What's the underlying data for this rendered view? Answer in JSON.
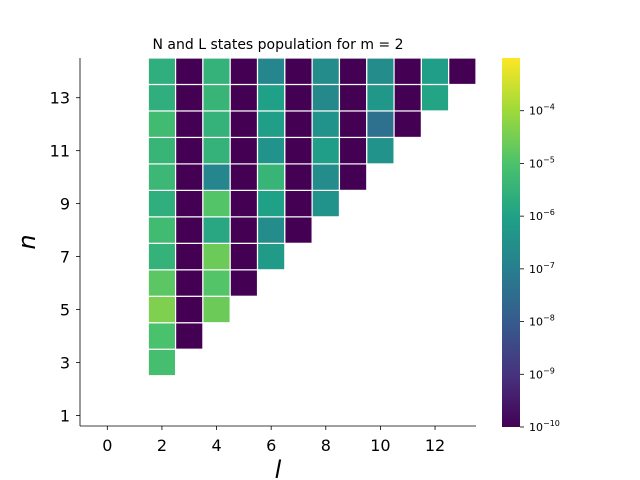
{
  "chart_data": {
    "type": "heatmap",
    "title": "N and L states population for m = 2",
    "xlabel": "l",
    "ylabel": "n",
    "x_ticks": [
      0,
      2,
      4,
      6,
      8,
      10,
      12
    ],
    "y_ticks": [
      1,
      3,
      5,
      7,
      9,
      11,
      13
    ],
    "xlim": [
      -1,
      13.5
    ],
    "ylim": [
      0.6,
      14.5
    ],
    "colorbar": {
      "scale": "log",
      "range": [
        1e-10,
        0.001
      ],
      "colormap": "viridis",
      "tick_values": [
        -10,
        -9,
        -8,
        -7,
        -6,
        -5,
        -4
      ],
      "tick_labels": [
        "10^-10",
        "10^-9",
        "10^-8",
        "10^-7",
        "10^-6",
        "10^-5",
        "10^-4"
      ]
    },
    "cells": [
      {
        "n": 3,
        "values": [
          -5.1
        ]
      },
      {
        "n": 4,
        "values": [
          -5.0,
          -10
        ]
      },
      {
        "n": 5,
        "values": [
          -4.4,
          -10,
          -4.6
        ]
      },
      {
        "n": 6,
        "values": [
          -4.8,
          -10,
          -4.9,
          -10
        ]
      },
      {
        "n": 7,
        "values": [
          -5.5,
          -10,
          -4.6,
          -10,
          -6.2
        ]
      },
      {
        "n": 8,
        "values": [
          -5.2,
          -10,
          -5.8,
          -10,
          -6.6,
          -10
        ]
      },
      {
        "n": 9,
        "values": [
          -5.6,
          -10,
          -4.9,
          -10,
          -6.0,
          -10,
          -6.4
        ]
      },
      {
        "n": 10,
        "values": [
          -5.3,
          -10,
          -6.8,
          -10,
          -5.4,
          -10,
          -6.6,
          -10
        ]
      },
      {
        "n": 11,
        "values": [
          -5.4,
          -10,
          -5.5,
          -10,
          -6.4,
          -10,
          -6.1,
          -10,
          -6.4
        ]
      },
      {
        "n": 12,
        "values": [
          -5.2,
          -10,
          -5.5,
          -10,
          -6.1,
          -10,
          -6.4,
          -10,
          -7.4,
          -10
        ]
      },
      {
        "n": 13,
        "values": [
          -5.6,
          -10,
          -5.4,
          -10,
          -6.0,
          -10,
          -6.7,
          -10,
          -6.3,
          -10,
          -5.9
        ]
      },
      {
        "n": 14,
        "values": [
          -5.6,
          -10,
          -5.5,
          -10,
          -6.8,
          -10,
          -6.6,
          -10,
          -6.6,
          -10,
          -6.1,
          -10
        ]
      }
    ]
  }
}
